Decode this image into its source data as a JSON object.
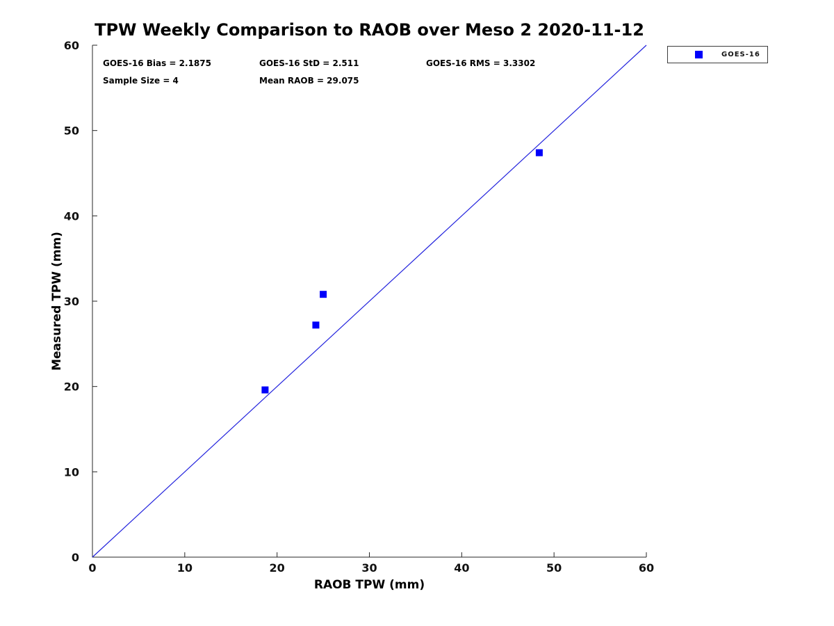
{
  "colors": {
    "axis": "#262626",
    "text": "#000000",
    "marker_blue": "#0000fa",
    "line_blue": "#2222dd",
    "background": "#ffffff"
  },
  "chart_data": {
    "type": "scatter",
    "title": "TPW Weekly Comparison to RAOB over Meso 2 2020-11-12",
    "xlabel": "RAOB TPW (mm)",
    "ylabel": "Measured TPW (mm)",
    "xlim": [
      0,
      60
    ],
    "ylim": [
      0,
      60
    ],
    "x_ticks": [
      0,
      10,
      20,
      30,
      40,
      50,
      60
    ],
    "y_ticks": [
      0,
      10,
      20,
      30,
      40,
      50,
      60
    ],
    "grid": false,
    "legend": {
      "label": "GOES-16",
      "position": "top-right-outside"
    },
    "series": [
      {
        "name": "GOES-16",
        "type": "scatter",
        "marker": "filled-square",
        "marker_size": 10,
        "color": "#0000fa",
        "x": [
          18.7,
          24.2,
          25.0,
          48.4
        ],
        "y": [
          19.6,
          27.2,
          30.8,
          47.4
        ]
      },
      {
        "name": "1:1 reference line",
        "type": "line",
        "color": "#2222dd",
        "x": [
          0,
          60
        ],
        "y": [
          0,
          60
        ]
      }
    ],
    "annotations": {
      "bias": "GOES-16 Bias = 2.1875",
      "std": "GOES-16 StD = 2.511",
      "rms": "GOES-16 RMS = 3.3302",
      "sample_size": "Sample Size = 4",
      "mean_raob": "Mean RAOB = 29.075"
    }
  }
}
